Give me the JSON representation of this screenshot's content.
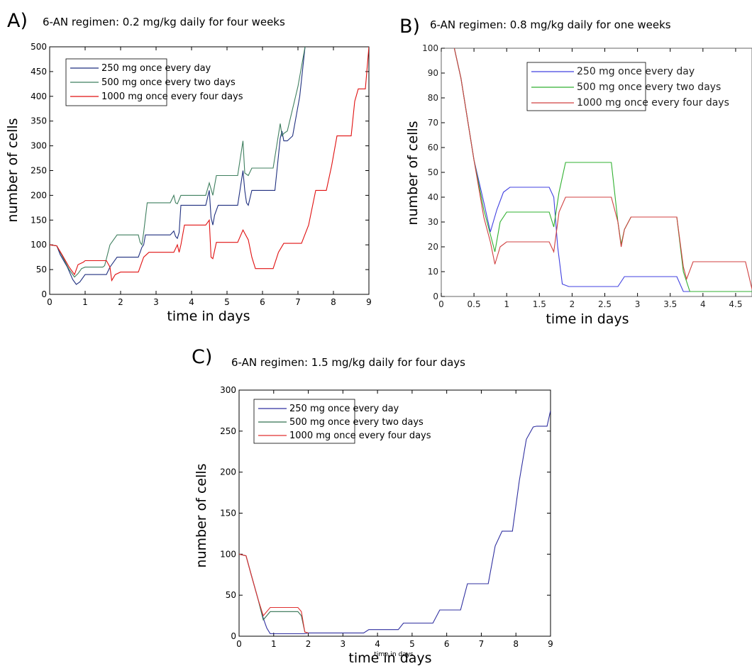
{
  "chart_data": [
    {
      "type": "line",
      "panel": "A)",
      "title": "6-AN regimen: 0.2 mg/kg daily for four weeks",
      "xlabel": "time in days",
      "ylabel": "number of cells",
      "xlim": [
        0,
        9
      ],
      "ylim": [
        0,
        500
      ],
      "xticks": [
        "0",
        "1",
        "2",
        "3",
        "4",
        "5",
        "6",
        "7",
        "8",
        "9"
      ],
      "yticks": [
        "0",
        "50",
        "100",
        "150",
        "200",
        "250",
        "300",
        "350",
        "400",
        "450",
        "500"
      ],
      "legend_position": "top-left",
      "series": [
        {
          "name": "250 mg once every day",
          "color": "#1f2f7f",
          "x": [
            0,
            0.2,
            0.3,
            0.5,
            0.65,
            0.75,
            0.85,
            1,
            1.6,
            1.7,
            1.9,
            2.5,
            2.6,
            2.65,
            2.7,
            3.4,
            3.5,
            3.55,
            3.6,
            3.65,
            3.7,
            4.4,
            4.5,
            4.55,
            4.6,
            4.65,
            4.75,
            5.3,
            5.45,
            5.5,
            5.55,
            5.6,
            5.7,
            6.35,
            6.5,
            6.55,
            6.6,
            6.7,
            6.85,
            7.05,
            7.2
          ],
          "y": [
            100,
            98,
            80,
            55,
            30,
            20,
            25,
            40,
            40,
            55,
            75,
            75,
            95,
            100,
            120,
            120,
            128,
            117,
            113,
            125,
            180,
            180,
            210,
            155,
            140,
            160,
            180,
            180,
            250,
            210,
            185,
            180,
            210,
            210,
            315,
            330,
            310,
            310,
            320,
            400,
            500
          ]
        },
        {
          "name": "500 mg once every two days",
          "color": "#3f7f5f",
          "x": [
            0,
            0.2,
            0.35,
            0.55,
            0.7,
            0.8,
            0.9,
            1,
            1.5,
            1.55,
            1.7,
            1.9,
            2.5,
            2.55,
            2.6,
            2.65,
            2.75,
            3.4,
            3.5,
            3.55,
            3.6,
            3.7,
            4.4,
            4.5,
            4.6,
            4.7,
            5.3,
            5.45,
            5.5,
            5.6,
            5.7,
            6.3,
            6.5,
            6.55,
            6.6,
            6.7,
            6.8,
            7,
            7.2
          ],
          "y": [
            100,
            98,
            78,
            50,
            35,
            42,
            52,
            55,
            55,
            58,
            100,
            120,
            120,
            105,
            100,
            125,
            185,
            185,
            200,
            185,
            183,
            200,
            200,
            225,
            200,
            240,
            240,
            310,
            245,
            240,
            255,
            255,
            345,
            320,
            325,
            330,
            360,
            420,
            500
          ]
        },
        {
          "name": "1000 mg once every four days",
          "color": "#e01010",
          "x": [
            0,
            0.2,
            0.35,
            0.55,
            0.7,
            0.8,
            0.95,
            1,
            1.6,
            1.7,
            1.75,
            1.85,
            2.0,
            2.5,
            2.65,
            2.8,
            3.5,
            3.6,
            3.65,
            3.7,
            3.8,
            4.4,
            4.5,
            4.55,
            4.6,
            4.7,
            4.8,
            5.3,
            5.45,
            5.6,
            5.7,
            5.8,
            6.3,
            6.45,
            6.6,
            7.1,
            7.3,
            7.4,
            7.5,
            7.8,
            7.95,
            8.1,
            8.5,
            8.6,
            8.7,
            8.9,
            9.0
          ],
          "y": [
            100,
            98,
            80,
            55,
            40,
            60,
            65,
            68,
            68,
            55,
            28,
            40,
            45,
            45,
            75,
            85,
            85,
            100,
            85,
            100,
            140,
            140,
            150,
            75,
            72,
            105,
            105,
            105,
            130,
            110,
            75,
            52,
            52,
            85,
            103,
            103,
            140,
            175,
            210,
            210,
            260,
            320,
            320,
            390,
            415,
            415,
            500
          ]
        }
      ]
    },
    {
      "type": "line",
      "panel": "B)",
      "title": "6-AN regimen: 0.8 mg/kg daily for one weeks",
      "xlabel": "time in days",
      "ylabel": "number of cells",
      "xlim": [
        0,
        4.75
      ],
      "ylim": [
        0,
        100
      ],
      "xticks": [
        "0",
        "0.5",
        "1",
        "1.5",
        "2",
        "2.5",
        "3",
        "3.5",
        "4",
        "4.5"
      ],
      "yticks": [
        "0",
        "10",
        "20",
        "30",
        "40",
        "50",
        "60",
        "70",
        "80",
        "90",
        "100"
      ],
      "legend_position": "top-right",
      "series": [
        {
          "name": "250 mg once every day",
          "color": "#4040e0",
          "x": [
            0.2,
            0.3,
            0.5,
            0.65,
            0.75,
            0.85,
            0.95,
            1.05,
            1.65,
            1.72,
            1.78,
            1.85,
            1.95,
            2.7,
            2.8,
            3.6,
            3.7,
            4.75
          ],
          "y": [
            100,
            88,
            55,
            38,
            26,
            35,
            42,
            44,
            44,
            40,
            20,
            5,
            4,
            4,
            8,
            8,
            2,
            2
          ]
        },
        {
          "name": "500 mg once every two days",
          "color": "#30b030",
          "x": [
            0.2,
            0.3,
            0.5,
            0.65,
            0.75,
            0.82,
            0.9,
            1.0,
            1.65,
            1.72,
            1.8,
            1.9,
            2.6,
            2.7,
            2.75,
            2.8,
            2.9,
            3.6,
            3.7,
            3.8,
            4.7,
            4.75
          ],
          "y": [
            100,
            88,
            55,
            35,
            25,
            18,
            30,
            34,
            34,
            28,
            42,
            54,
            54,
            30,
            21,
            27,
            32,
            32,
            10,
            2,
            2,
            2
          ]
        },
        {
          "name": "1000 mg once every four days",
          "color": "#d04040",
          "x": [
            0.2,
            0.3,
            0.5,
            0.65,
            0.75,
            0.82,
            0.9,
            1.0,
            1.65,
            1.72,
            1.8,
            1.9,
            2.6,
            2.7,
            2.75,
            2.8,
            2.9,
            3.6,
            3.7,
            3.75,
            3.85,
            4.65,
            4.75
          ],
          "y": [
            100,
            88,
            55,
            32,
            22,
            13,
            20,
            22,
            22,
            18,
            34,
            40,
            40,
            30,
            20,
            27,
            32,
            32,
            12,
            7,
            14,
            14,
            3
          ]
        }
      ]
    },
    {
      "type": "line",
      "panel": "C)",
      "title": "6-AN regimen: 1.5 mg/kg daily for four days",
      "xlabel": "time in days",
      "xlabel_overlap": "time in days",
      "ylabel": "number of cells",
      "xlim": [
        0,
        9
      ],
      "ylim": [
        0,
        300
      ],
      "xticks": [
        "0",
        "1",
        "2",
        "3",
        "4",
        "5",
        "6",
        "7",
        "8",
        "9"
      ],
      "yticks": [
        "0",
        "50",
        "100",
        "150",
        "200",
        "250",
        "300"
      ],
      "legend_position": "top-left",
      "series": [
        {
          "name": "250 mg once every day",
          "color": "#3030a0",
          "x": [
            0,
            0.2,
            0.35,
            0.55,
            0.7,
            0.8,
            0.9,
            1.0,
            1.9,
            2.0,
            3.6,
            3.75,
            4.6,
            4.75,
            5.6,
            5.8,
            6.4,
            6.6,
            7.2,
            7.4,
            7.6,
            7.9,
            8.1,
            8.3,
            8.5,
            8.6,
            8.9,
            9.0
          ],
          "y": [
            100,
            98,
            75,
            45,
            22,
            10,
            3,
            3,
            3,
            4,
            4,
            8,
            8,
            16,
            16,
            32,
            32,
            64,
            64,
            110,
            128,
            128,
            190,
            240,
            255,
            256,
            256,
            275
          ]
        },
        {
          "name": "500 mg once every two days",
          "color": "#307050",
          "x": [
            0,
            0.2,
            0.35,
            0.55,
            0.7,
            0.8,
            0.9,
            1.0,
            1.7,
            1.8,
            1.9,
            2.0
          ],
          "y": [
            100,
            98,
            75,
            45,
            20,
            25,
            30,
            30,
            30,
            25,
            5,
            4
          ]
        },
        {
          "name": "1000 mg once every four days",
          "color": "#e03030",
          "x": [
            0,
            0.2,
            0.35,
            0.55,
            0.7,
            0.8,
            0.9,
            1.0,
            1.7,
            1.8,
            1.9,
            2.0
          ],
          "y": [
            100,
            98,
            75,
            45,
            25,
            30,
            35,
            35,
            35,
            30,
            5,
            4
          ]
        }
      ]
    }
  ]
}
